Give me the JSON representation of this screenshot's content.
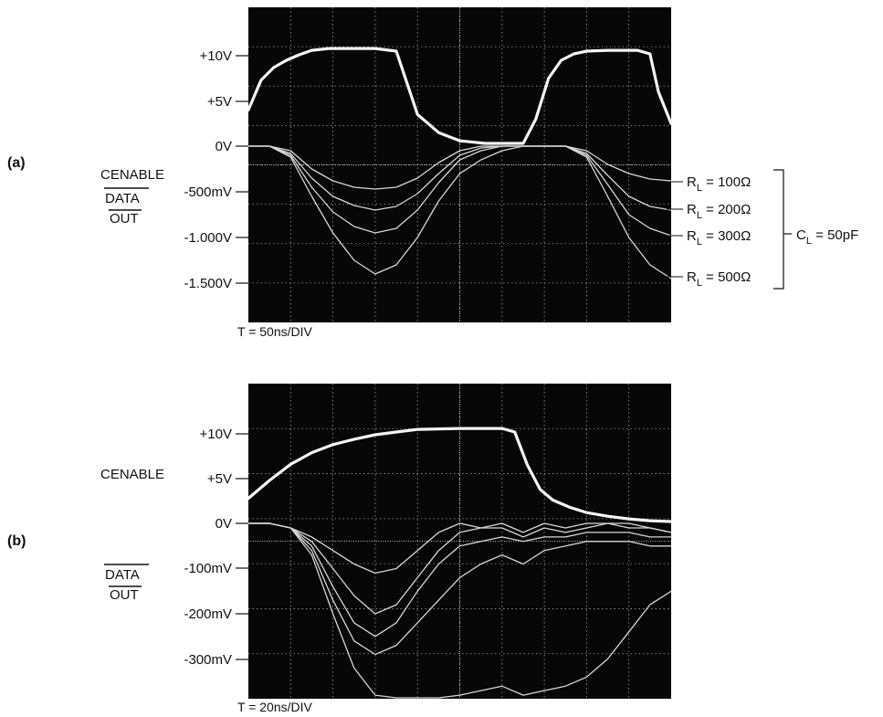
{
  "chart_data": [
    {
      "panel": "(a)",
      "type": "line",
      "time_base": "T = 50ns/DIV",
      "channel_labels": [
        "CENABLE",
        "DATA",
        "OUT"
      ],
      "left_ticks": [
        "+10V",
        "+5V",
        "0V",
        "-500mV",
        "-1.000V",
        "-1.500V"
      ],
      "x_divisions": 10,
      "y_divisions": 8,
      "grid": true,
      "series": [
        {
          "trace": "cenable",
          "x": [
            0,
            0.3,
            0.6,
            0.9,
            1.2,
            1.5,
            1.9,
            2.3,
            2.6,
            3.0,
            3.5,
            4.0,
            4.5,
            5.0,
            5.6,
            6.0,
            6.2,
            6.5,
            6.8,
            7.1,
            7.4,
            7.7,
            8.0,
            8.5,
            9.0,
            9.2,
            9.5,
            9.7,
            10
          ],
          "y": [
            4.0,
            7.3,
            8.7,
            9.5,
            10.1,
            10.6,
            10.8,
            10.8,
            10.8,
            10.8,
            10.5,
            3.5,
            1.5,
            0.6,
            0.3,
            0.3,
            0.3,
            0.3,
            3.0,
            7.5,
            9.5,
            10.2,
            10.5,
            10.6,
            10.6,
            10.6,
            10.2,
            6.0,
            2.5
          ]
        },
        {
          "trace": "data_out",
          "name": "R_L = 100Ω",
          "x": [
            0,
            0.5,
            1.0,
            1.5,
            2.0,
            2.5,
            3.0,
            3.5,
            4.0,
            4.5,
            5.0,
            5.5,
            6.0,
            6.5,
            7.0,
            7.5,
            8.0,
            8.5,
            9.0,
            9.5,
            10
          ],
          "y": [
            0,
            0,
            -0.05,
            -0.25,
            -0.38,
            -0.45,
            -0.47,
            -0.45,
            -0.35,
            -0.18,
            -0.05,
            0,
            0,
            0,
            0,
            0,
            -0.05,
            -0.2,
            -0.3,
            -0.36,
            -0.38
          ]
        },
        {
          "trace": "data_out",
          "name": "R_L = 200Ω",
          "x": [
            0,
            0.5,
            1.0,
            1.5,
            2.0,
            2.5,
            3.0,
            3.5,
            4.0,
            4.5,
            5.0,
            5.5,
            6.0,
            6.5,
            7.0,
            7.5,
            8.0,
            8.5,
            9.0,
            9.5,
            10
          ],
          "y": [
            0,
            0,
            -0.08,
            -0.35,
            -0.55,
            -0.65,
            -0.7,
            -0.66,
            -0.52,
            -0.3,
            -0.1,
            -0.02,
            0,
            0,
            0,
            0,
            -0.08,
            -0.32,
            -0.55,
            -0.66,
            -0.7
          ]
        },
        {
          "trace": "data_out",
          "name": "R_L = 300Ω",
          "x": [
            0,
            0.5,
            1.0,
            1.5,
            2.0,
            2.5,
            3.0,
            3.5,
            4.0,
            4.5,
            5.0,
            5.5,
            6.0,
            6.5,
            7.0,
            7.5,
            8.0,
            8.5,
            9.0,
            9.5,
            10
          ],
          "y": [
            0,
            0,
            -0.1,
            -0.45,
            -0.72,
            -0.88,
            -0.95,
            -0.9,
            -0.7,
            -0.4,
            -0.15,
            -0.05,
            0,
            0,
            0,
            0,
            -0.1,
            -0.42,
            -0.75,
            -0.9,
            -0.98
          ]
        },
        {
          "trace": "data_out",
          "name": "R_L = 500Ω",
          "x": [
            0,
            0.5,
            1.0,
            1.5,
            2.0,
            2.5,
            3.0,
            3.5,
            4.0,
            4.5,
            5.0,
            5.5,
            6.0,
            6.5,
            7.0,
            7.5,
            8.0,
            8.5,
            9.0,
            9.5,
            10
          ],
          "y": [
            0,
            0,
            -0.12,
            -0.55,
            -0.95,
            -1.25,
            -1.4,
            -1.3,
            -1.0,
            -0.6,
            -0.3,
            -0.15,
            -0.05,
            0,
            0,
            0,
            -0.12,
            -0.55,
            -1.0,
            -1.3,
            -1.45
          ]
        }
      ],
      "right_labels": [
        "R",
        "L",
        " = 100Ω",
        " = 200Ω",
        " = 300Ω",
        " = 500Ω",
        "C",
        " = 50pF"
      ]
    },
    {
      "panel": "(b)",
      "type": "line",
      "time_base": "T = 20ns/DIV",
      "channel_labels": [
        "CENABLE",
        "DATA",
        "OUT"
      ],
      "left_ticks": [
        "+10V",
        "+5V",
        "0V",
        "-100mV",
        "-200mV",
        "-300mV"
      ],
      "x_divisions": 10,
      "y_divisions": 7,
      "grid": true,
      "series": [
        {
          "trace": "cenable",
          "x": [
            0,
            0.5,
            1.0,
            1.5,
            2.0,
            2.5,
            3.0,
            3.5,
            4.0,
            5.0,
            6.0,
            6.3,
            6.6,
            6.9,
            7.2,
            7.6,
            8.0,
            8.5,
            9.0,
            9.5,
            10
          ],
          "y": [
            2.8,
            4.8,
            6.6,
            7.9,
            8.8,
            9.4,
            9.9,
            10.2,
            10.5,
            10.6,
            10.6,
            10.2,
            6.5,
            3.8,
            2.6,
            1.8,
            1.2,
            0.8,
            0.5,
            0.3,
            0.2
          ]
        },
        {
          "trace": "data_out",
          "x": [
            0,
            0.5,
            1.0,
            1.5,
            2.0,
            2.5,
            3.0,
            3.5,
            4.0,
            4.5,
            5.0,
            5.5,
            6.0,
            6.5,
            7.0,
            7.5,
            8.0,
            8.5,
            9.0,
            9.5,
            10
          ],
          "y": [
            0,
            0,
            -0.01,
            -0.03,
            -0.06,
            -0.09,
            -0.11,
            -0.1,
            -0.06,
            -0.02,
            0,
            -0.01,
            0,
            -0.02,
            0,
            -0.01,
            0,
            0,
            0,
            -0.01,
            -0.02
          ]
        },
        {
          "trace": "data_out",
          "x": [
            0,
            0.5,
            1.0,
            1.5,
            2.0,
            2.5,
            3.0,
            3.5,
            4.0,
            4.5,
            5.0,
            5.5,
            6.0,
            6.5,
            7.0,
            7.5,
            8.0,
            8.5,
            9.0,
            9.5,
            10
          ],
          "y": [
            0,
            0,
            -0.01,
            -0.04,
            -0.1,
            -0.16,
            -0.2,
            -0.18,
            -0.12,
            -0.06,
            -0.02,
            -0.01,
            -0.01,
            -0.03,
            -0.01,
            -0.02,
            -0.01,
            0,
            -0.01,
            -0.01,
            -0.02
          ]
        },
        {
          "trace": "data_out",
          "x": [
            0,
            0.5,
            1.0,
            1.5,
            2.0,
            2.5,
            3.0,
            3.5,
            4.0,
            4.5,
            5.0,
            5.5,
            6.0,
            6.5,
            7.0,
            7.5,
            8.0,
            8.5,
            9.0,
            9.5,
            10
          ],
          "y": [
            0,
            0,
            -0.01,
            -0.05,
            -0.14,
            -0.22,
            -0.25,
            -0.22,
            -0.15,
            -0.09,
            -0.05,
            -0.04,
            -0.03,
            -0.04,
            -0.03,
            -0.03,
            -0.02,
            -0.02,
            -0.02,
            -0.03,
            -0.03
          ]
        },
        {
          "trace": "data_out",
          "x": [
            0,
            0.5,
            1.0,
            1.5,
            2.0,
            2.5,
            3.0,
            3.5,
            4.0,
            4.5,
            5.0,
            5.5,
            6.0,
            6.5,
            7.0,
            7.5,
            8.0,
            8.5,
            9.0,
            9.5,
            10
          ],
          "y": [
            0,
            0,
            -0.01,
            -0.06,
            -0.17,
            -0.26,
            -0.29,
            -0.27,
            -0.22,
            -0.17,
            -0.12,
            -0.09,
            -0.07,
            -0.09,
            -0.06,
            -0.05,
            -0.04,
            -0.04,
            -0.04,
            -0.05,
            -0.05
          ]
        },
        {
          "trace": "data_out",
          "x": [
            0,
            0.5,
            1.0,
            1.5,
            2.0,
            2.5,
            3.0,
            3.5,
            4.0,
            4.5,
            5.0,
            5.5,
            6.0,
            6.5,
            7.0,
            7.5,
            8.0,
            8.5,
            9.0,
            9.5,
            10
          ],
          "y": [
            0,
            0,
            -0.01,
            -0.07,
            -0.2,
            -0.32,
            -0.38,
            -0.4,
            -0.4,
            -0.39,
            -0.38,
            -0.37,
            -0.36,
            -0.38,
            -0.37,
            -0.36,
            -0.34,
            -0.3,
            -0.24,
            -0.18,
            -0.15
          ]
        }
      ]
    }
  ]
}
